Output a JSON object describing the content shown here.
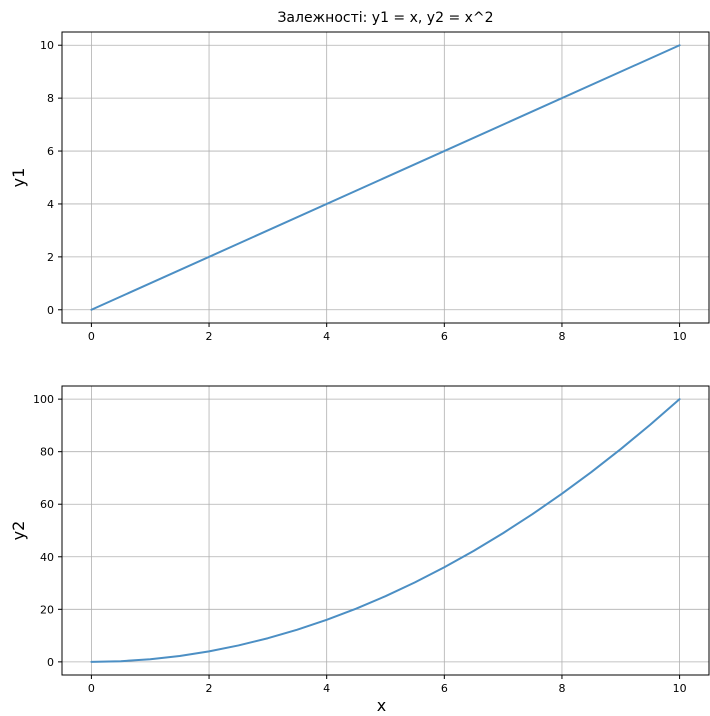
{
  "chart_data": [
    {
      "type": "line",
      "title": "Залежності: y1 = x, y2 = x^2",
      "xlabel": "",
      "ylabel": "y1",
      "xlim": [
        -0.5,
        10.5
      ],
      "ylim": [
        -0.5,
        10.5
      ],
      "xticks": [
        0,
        2,
        4,
        6,
        8,
        10
      ],
      "yticks": [
        0,
        2,
        4,
        6,
        8,
        10
      ],
      "grid": true,
      "series": [
        {
          "color": "#4c8fc4",
          "x": [
            0,
            10
          ],
          "y": [
            0,
            10
          ]
        }
      ]
    },
    {
      "type": "line",
      "title": "",
      "xlabel": "x",
      "ylabel": "y2",
      "xlim": [
        -0.5,
        10.5
      ],
      "ylim": [
        -5,
        105
      ],
      "xticks": [
        0,
        2,
        4,
        6,
        8,
        10
      ],
      "yticks": [
        0,
        20,
        40,
        60,
        80,
        100
      ],
      "grid": true,
      "series": [
        {
          "color": "#4c8fc4",
          "x": [
            0,
            0.5,
            1,
            1.5,
            2,
            2.5,
            3,
            3.5,
            4,
            4.5,
            5,
            5.5,
            6,
            6.5,
            7,
            7.5,
            8,
            8.5,
            9,
            9.5,
            10
          ],
          "y": [
            0,
            0.25,
            1,
            2.25,
            4,
            6.25,
            9,
            12.25,
            16,
            20.25,
            25,
            30.25,
            36,
            42.25,
            49,
            56.25,
            64,
            72.25,
            81,
            90.25,
            100
          ]
        }
      ]
    }
  ]
}
